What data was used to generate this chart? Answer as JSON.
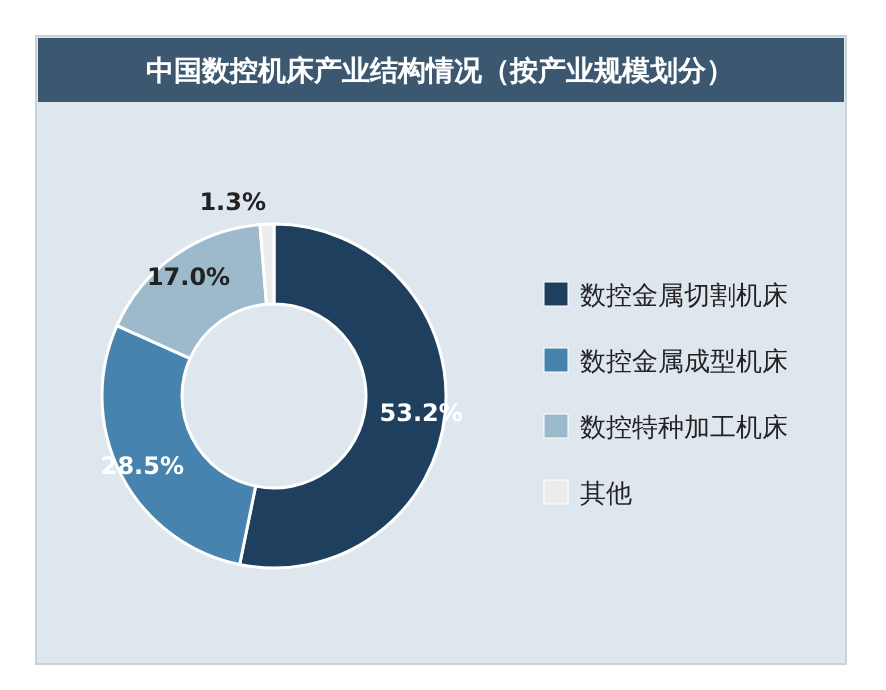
{
  "chart_data": {
    "type": "donut",
    "title": "中国数控机床产业结构情况（按产业规模划分）",
    "categories": [
      "数控金属切割机床",
      "数控金属成型机床",
      "数控特种加工机床",
      "其他"
    ],
    "values": [
      53.2,
      28.5,
      17.0,
      1.3
    ],
    "colors": [
      "#1e3f5e",
      "#4683ae",
      "#9db9cc",
      "#ececec"
    ],
    "value_labels": [
      "53.2%",
      "28.5%",
      "17.0%",
      "1.3%"
    ],
    "legend": "right"
  }
}
